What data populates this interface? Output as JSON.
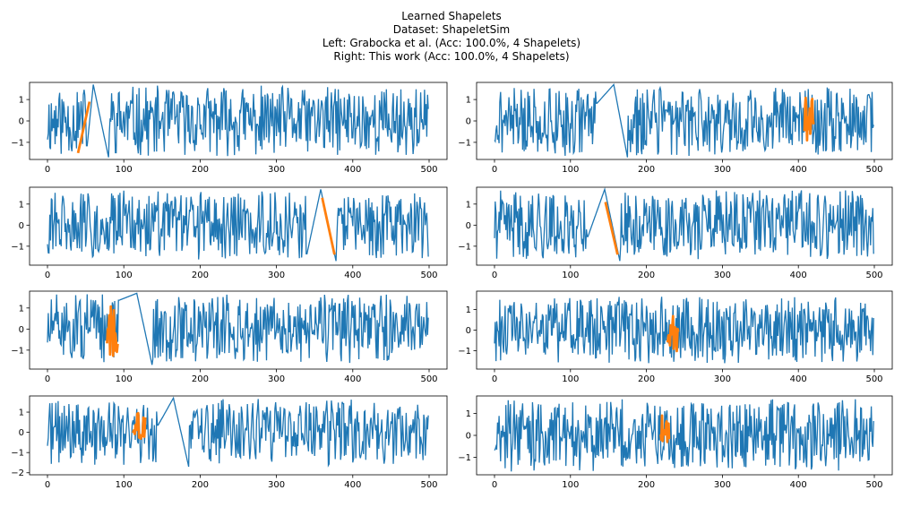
{
  "figure": {
    "title_lines": [
      "Learned Shapelets",
      "Dataset: ShapeletSim",
      "Left: Grabocka et al. (Acc: 100.0%, 4 Shapelets)",
      "Right: This work (Acc: 100.0%, 4 Shapelets)"
    ]
  },
  "colors": {
    "series": "#1f77b4",
    "shapelet": "#ff7f0e",
    "axes": "#000000",
    "background": "#ffffff"
  },
  "chart_data": [
    {
      "type": "line",
      "column": "left",
      "row": 1,
      "seed": 11,
      "length": 500,
      "triangle": {
        "start": 52,
        "peak": 60,
        "end": 80,
        "peak_value": 1.7,
        "trough_value": -1.7
      },
      "shapelet": {
        "x": [
          40,
          55
        ],
        "y": [
          -1.5,
          0.9
        ],
        "kind": "ramp"
      },
      "xlim": [
        0,
        500
      ],
      "xticks": [
        0,
        100,
        200,
        300,
        400,
        500
      ],
      "ylim": [
        -1.8,
        1.8
      ],
      "yticks": [
        -1,
        0,
        1
      ]
    },
    {
      "type": "line",
      "column": "right",
      "row": 1,
      "seed": 21,
      "length": 500,
      "triangle": {
        "start": 135,
        "peak": 157,
        "end": 175,
        "peak_value": 1.7,
        "trough_value": -1.7
      },
      "shapelet": {
        "x": [
          408,
          420
        ],
        "y": [
          -1.0,
          1.1
        ],
        "kind": "noise"
      },
      "xlim": [
        0,
        500
      ],
      "xticks": [
        0,
        100,
        200,
        300,
        400,
        500
      ],
      "ylim": [
        -1.8,
        1.8
      ],
      "yticks": [
        -1,
        0,
        1
      ]
    },
    {
      "type": "line",
      "column": "left",
      "row": 2,
      "seed": 31,
      "length": 500,
      "triangle": {
        "start": 340,
        "peak": 358,
        "end": 378,
        "peak_value": 1.7,
        "trough_value": -1.7
      },
      "shapelet": {
        "x": [
          360,
          376
        ],
        "y": [
          1.3,
          -1.4
        ],
        "kind": "ramp"
      },
      "xlim": [
        0,
        500
      ],
      "xticks": [
        0,
        100,
        200,
        300,
        400,
        500
      ],
      "ylim": [
        -1.9,
        1.8
      ],
      "yticks": [
        -1,
        0,
        1
      ]
    },
    {
      "type": "line",
      "column": "right",
      "row": 2,
      "seed": 41,
      "length": 500,
      "triangle": {
        "start": 123,
        "peak": 145,
        "end": 165,
        "peak_value": 1.7,
        "trough_value": -1.7
      },
      "shapelet": {
        "x": [
          146,
          162
        ],
        "y": [
          1.1,
          -1.4
        ],
        "kind": "ramp"
      },
      "xlim": [
        0,
        500
      ],
      "xticks": [
        0,
        100,
        200,
        300,
        400,
        500
      ],
      "ylim": [
        -1.9,
        1.8
      ],
      "yticks": [
        -1,
        0,
        1
      ]
    },
    {
      "type": "line",
      "column": "left",
      "row": 3,
      "seed": 51,
      "length": 500,
      "triangle": {
        "start": 94,
        "peak": 117,
        "end": 137,
        "peak_value": 1.7,
        "trough_value": -1.7
      },
      "shapelet": {
        "x": [
          78,
          92
        ],
        "y": [
          -1.3,
          1.1
        ],
        "kind": "noise"
      },
      "xlim": [
        0,
        500
      ],
      "xticks": [
        0,
        100,
        200,
        300,
        400,
        500
      ],
      "ylim": [
        -1.9,
        1.8
      ],
      "yticks": [
        -1,
        0,
        1
      ]
    },
    {
      "type": "line",
      "column": "right",
      "row": 3,
      "seed": 61,
      "length": 500,
      "triangle": null,
      "shapelet": {
        "x": [
          228,
          242
        ],
        "y": [
          -1.1,
          0.8
        ],
        "kind": "noise"
      },
      "xlim": [
        0,
        500
      ],
      "xticks": [
        0,
        100,
        200,
        300,
        400,
        500
      ],
      "ylim": [
        -1.9,
        1.9
      ],
      "yticks": [
        -1,
        0,
        1
      ]
    },
    {
      "type": "line",
      "column": "left",
      "row": 4,
      "seed": 71,
      "length": 500,
      "triangle": {
        "start": 145,
        "peak": 165,
        "end": 185,
        "peak_value": 1.7,
        "trough_value": -1.7
      },
      "shapelet": {
        "x": [
          112,
          128
        ],
        "y": [
          -0.4,
          1.0
        ],
        "kind": "noise"
      },
      "xlim": [
        0,
        500
      ],
      "xticks": [
        0,
        100,
        200,
        300,
        400,
        500
      ],
      "ylim": [
        -2.1,
        1.8
      ],
      "yticks": [
        -2,
        -1,
        0,
        1
      ]
    },
    {
      "type": "line",
      "column": "right",
      "row": 4,
      "seed": 81,
      "length": 500,
      "triangle": null,
      "shapelet": {
        "x": [
          218,
          230
        ],
        "y": [
          -0.3,
          1.0
        ],
        "kind": "noise"
      },
      "xlim": [
        0,
        500
      ],
      "xticks": [
        0,
        100,
        200,
        300,
        400,
        500
      ],
      "ylim": [
        -1.8,
        1.8
      ],
      "yticks": [
        -1,
        0,
        1
      ]
    }
  ]
}
